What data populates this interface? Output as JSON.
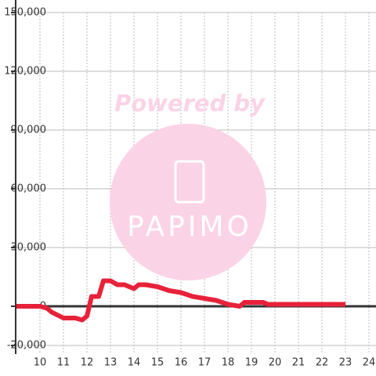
{
  "chart_data": {
    "type": "line",
    "watermark": {
      "title": "Powered by",
      "brand": "PAPIMO"
    },
    "x": [
      9,
      10,
      10.3,
      10.5,
      11,
      11.5,
      11.8,
      12,
      12.2,
      12.5,
      12.7,
      13,
      13.3,
      13.6,
      14,
      14.2,
      14.5,
      15,
      15.5,
      16,
      16.5,
      17,
      17.5,
      18,
      18.5,
      18.7,
      19,
      19.5,
      19.7,
      20,
      23
    ],
    "series": [
      {
        "color": "#e8213a",
        "values": [
          0,
          0,
          -1000,
          -3000,
          -6000,
          -6000,
          -7000,
          -5000,
          5000,
          5000,
          13000,
          13000,
          11000,
          11000,
          9000,
          11000,
          11000,
          10000,
          8000,
          7000,
          5000,
          4000,
          3000,
          1000,
          0,
          2000,
          2000,
          2000,
          1000,
          1000,
          1000
        ]
      }
    ],
    "xlim": [
      9,
      24.3
    ],
    "ylim": [
      -20000,
      150000
    ],
    "xticks": [
      10,
      11,
      12,
      13,
      14,
      15,
      16,
      17,
      18,
      19,
      20,
      21,
      22,
      23,
      24
    ],
    "yticks": [
      {
        "value": -20000,
        "label": "-20,000"
      },
      0,
      {
        "value": 30000,
        "label": "30,000"
      },
      {
        "value": 60000,
        "label": "60,000"
      },
      {
        "value": 90000,
        "label": "90,000"
      },
      {
        "value": 120000,
        "label": "120,000"
      },
      {
        "value": 150000,
        "label": "150,000"
      }
    ],
    "grid": true
  }
}
